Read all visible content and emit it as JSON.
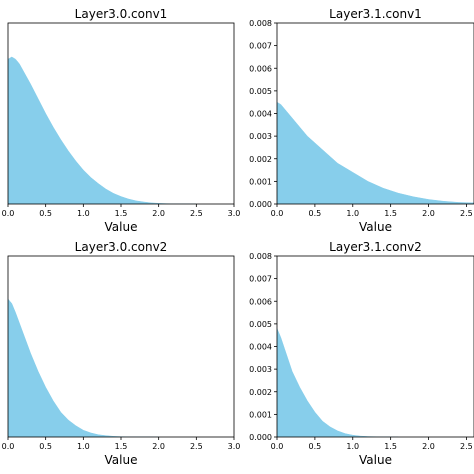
{
  "chart_data": [
    {
      "type": "area",
      "title": "Layer3.0.conv1",
      "xlabel": "Value",
      "ylabel": "",
      "xlim": [
        0,
        3.0
      ],
      "ylim": [
        0,
        0.008
      ],
      "xticks": [
        "0.0",
        "0.5",
        "1.0",
        "1.5",
        "2.0",
        "2.5",
        "3.0"
      ],
      "yticks": [],
      "color": "#87ceeb",
      "x": [
        0.0,
        0.05,
        0.1,
        0.15,
        0.2,
        0.3,
        0.4,
        0.5,
        0.6,
        0.7,
        0.8,
        0.9,
        1.0,
        1.1,
        1.2,
        1.3,
        1.4,
        1.5,
        1.6,
        1.7,
        1.8,
        1.9,
        2.0,
        2.1,
        2.2,
        2.3,
        2.5
      ],
      "y": [
        0.0064,
        0.0065,
        0.0064,
        0.0062,
        0.0059,
        0.0053,
        0.00465,
        0.004,
        0.0034,
        0.00285,
        0.00235,
        0.0019,
        0.0015,
        0.00117,
        0.0009,
        0.00066,
        0.00047,
        0.00033,
        0.00022,
        0.00014,
        9e-05,
        5e-05,
        3e-05,
        1.5e-05,
        8e-06,
        3e-06,
        0.0
      ]
    },
    {
      "type": "area",
      "title": "Layer3.1.conv1",
      "xlabel": "Value",
      "ylabel": "",
      "xlim": [
        0,
        2.6
      ],
      "ylim": [
        0,
        0.008
      ],
      "xticks": [
        "0.0",
        "0.5",
        "1.0",
        "1.5",
        "2.0",
        "2.5"
      ],
      "yticks": [
        "0.000",
        "0.001",
        "0.002",
        "0.003",
        "0.004",
        "0.005",
        "0.006",
        "0.007",
        "0.008"
      ],
      "color": "#87ceeb",
      "x": [
        0.0,
        0.05,
        0.1,
        0.2,
        0.3,
        0.4,
        0.5,
        0.6,
        0.7,
        0.8,
        0.9,
        1.0,
        1.2,
        1.4,
        1.6,
        1.8,
        2.0,
        2.2,
        2.4,
        2.6
      ],
      "y": [
        0.0045,
        0.0044,
        0.0042,
        0.0038,
        0.0034,
        0.003,
        0.0027,
        0.0024,
        0.0021,
        0.0018,
        0.0016,
        0.0014,
        0.001,
        0.0007,
        0.00048,
        0.00032,
        0.0002,
        0.00012,
        7e-05,
        5e-05
      ]
    },
    {
      "type": "area",
      "title": "Layer3.0.conv2",
      "xlabel": "Value",
      "ylabel": "",
      "xlim": [
        0,
        3.0
      ],
      "ylim": [
        0,
        0.008
      ],
      "xticks": [
        "0.0",
        "0.5",
        "1.0",
        "1.5",
        "2.0",
        "2.5",
        "3.0"
      ],
      "yticks": [],
      "color": "#87ceeb",
      "x": [
        0.0,
        0.05,
        0.1,
        0.2,
        0.3,
        0.4,
        0.5,
        0.6,
        0.7,
        0.8,
        0.9,
        1.0,
        1.1,
        1.2,
        1.3,
        1.4,
        1.5,
        1.7,
        2.0
      ],
      "y": [
        0.0061,
        0.0059,
        0.0055,
        0.0046,
        0.0037,
        0.0029,
        0.0022,
        0.0016,
        0.0011,
        0.00075,
        0.0005,
        0.0003,
        0.00018,
        0.0001,
        6e-05,
        3e-05,
        1.5e-05,
        5e-06,
        0.0
      ]
    },
    {
      "type": "area",
      "title": "Layer3.1.conv2",
      "xlabel": "Value",
      "ylabel": "",
      "xlim": [
        0,
        2.6
      ],
      "ylim": [
        0,
        0.008
      ],
      "xticks": [
        "0.0",
        "0.5",
        "1.0",
        "1.5",
        "2.0",
        "2.5"
      ],
      "yticks": [
        "0.000",
        "0.001",
        "0.002",
        "0.003",
        "0.004",
        "0.005",
        "0.006",
        "0.007",
        "0.008"
      ],
      "color": "#87ceeb",
      "x": [
        0.0,
        0.05,
        0.1,
        0.15,
        0.2,
        0.3,
        0.4,
        0.5,
        0.6,
        0.7,
        0.8,
        0.9,
        1.0,
        1.1,
        1.2,
        1.4,
        1.6
      ],
      "y": [
        0.0048,
        0.0044,
        0.0039,
        0.0034,
        0.0029,
        0.0022,
        0.0016,
        0.0011,
        0.0007,
        0.00045,
        0.00027,
        0.00015,
        8e-05,
        4e-05,
        2e-05,
        5e-06,
        0.0
      ]
    }
  ]
}
